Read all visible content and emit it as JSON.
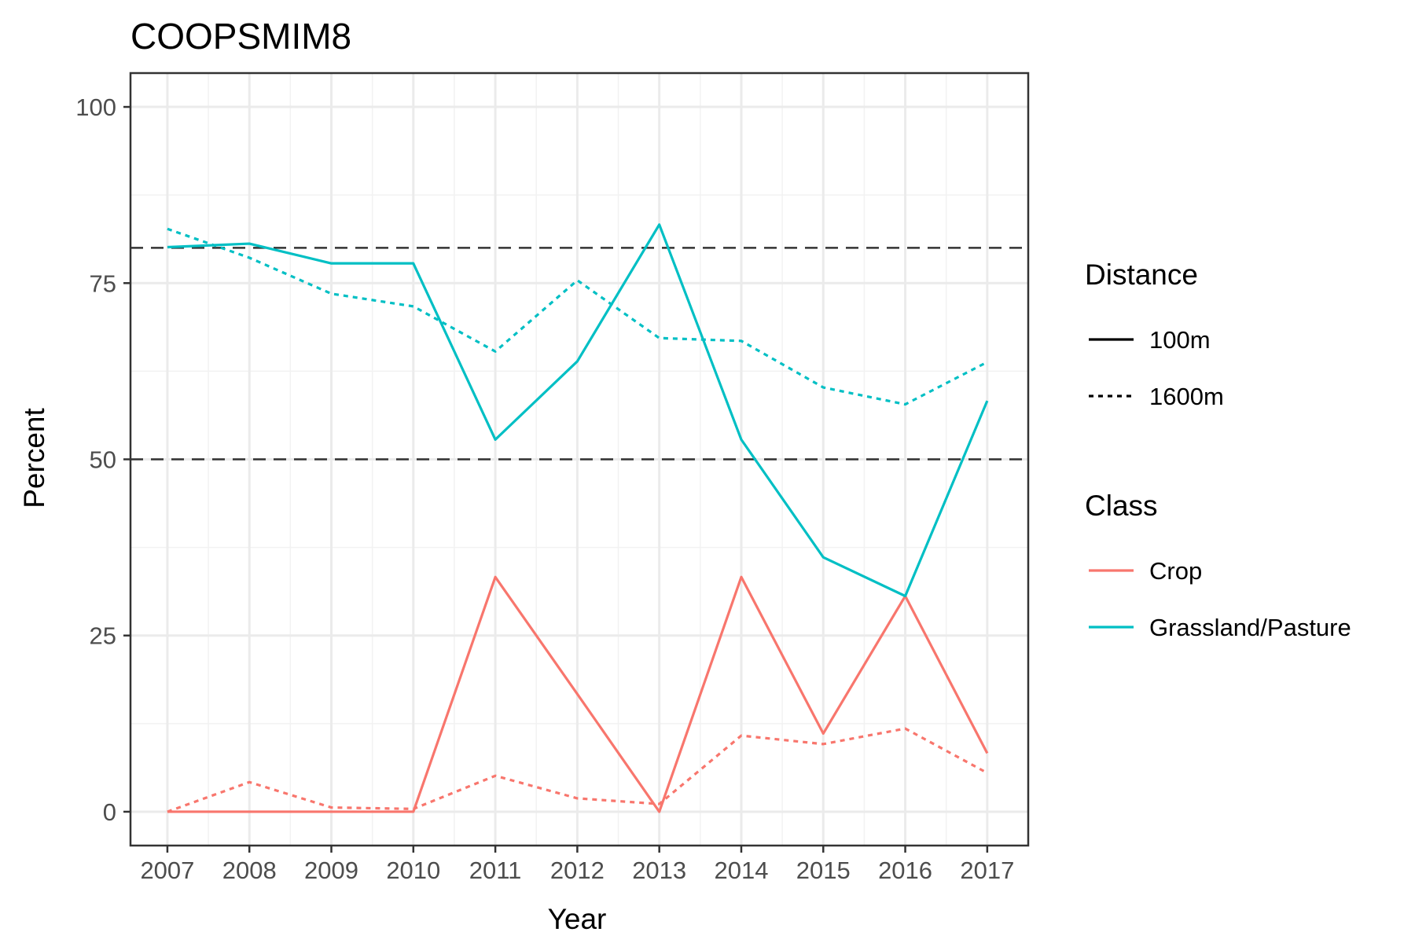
{
  "chart_data": {
    "type": "line",
    "title": "COOPSMIM8",
    "xlabel": "Year",
    "ylabel": "Percent",
    "x": [
      2007,
      2008,
      2009,
      2010,
      2011,
      2012,
      2013,
      2014,
      2015,
      2016,
      2017
    ],
    "xlim": [
      2006.55,
      2017.5
    ],
    "ylim": [
      -4.8,
      104.8
    ],
    "yticks": [
      0,
      25,
      50,
      75,
      100
    ],
    "grid": true,
    "reference_lines": [
      {
        "y": 80,
        "style": "dashed",
        "color": "#333333"
      },
      {
        "y": 50,
        "style": "dashed",
        "color": "#333333"
      }
    ],
    "series": [
      {
        "class": "Crop",
        "distance": "100m",
        "color": "#F8766D",
        "linestyle": "solid",
        "values": [
          0,
          0,
          0,
          0,
          33.3,
          16.7,
          0,
          33.3,
          11.1,
          30.6,
          8.3
        ]
      },
      {
        "class": "Crop",
        "distance": "1600m",
        "color": "#F8766D",
        "linestyle": "dotted",
        "values": [
          0,
          4.2,
          0.6,
          0.4,
          5.1,
          1.9,
          1.1,
          10.8,
          9.6,
          11.8,
          5.5
        ]
      },
      {
        "class": "Grassland/Pasture",
        "distance": "100m",
        "color": "#00BFC4",
        "linestyle": "solid",
        "values": [
          80.1,
          80.6,
          77.8,
          77.8,
          52.8,
          63.9,
          83.3,
          52.8,
          36.1,
          30.6,
          58.3
        ]
      },
      {
        "class": "Grassland/Pasture",
        "distance": "1600m",
        "color": "#00BFC4",
        "linestyle": "dotted",
        "values": [
          82.7,
          78.6,
          73.5,
          71.7,
          65.3,
          75.4,
          67.2,
          66.8,
          60.2,
          57.8,
          63.8
        ]
      }
    ],
    "legend": {
      "placement": "right",
      "groups": [
        {
          "title": "Distance",
          "entries": [
            {
              "label": "100m",
              "color": "#000000",
              "linestyle": "solid"
            },
            {
              "label": "1600m",
              "color": "#000000",
              "linestyle": "dotted"
            }
          ]
        },
        {
          "title": "Class",
          "entries": [
            {
              "label": "Crop",
              "color": "#F8766D",
              "linestyle": "solid"
            },
            {
              "label": "Grassland/Pasture",
              "color": "#00BFC4",
              "linestyle": "solid"
            }
          ]
        }
      ]
    }
  }
}
